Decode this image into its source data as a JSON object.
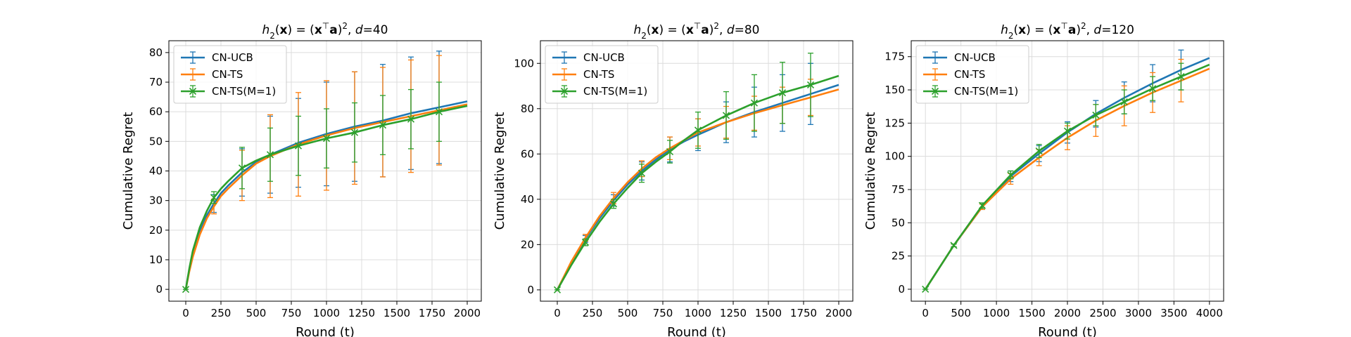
{
  "chart_data": [
    {
      "type": "line",
      "title": "h2(x) = (x⊤a)2, d=40",
      "title_parts": {
        "fn": "h",
        "sub": "2",
        "var": "x",
        "sup_t": "⊤",
        "vec": "a",
        "sq": "2",
        "dlabel": "d",
        "dvalue": "=40"
      },
      "xlabel_text": "Round (",
      "xlabel_var": "t",
      "xlabel_end": ")",
      "ylabel": "Cumulative Regret",
      "xlim": [
        -120,
        2100
      ],
      "ylim": [
        -4,
        84
      ],
      "xticks": [
        0,
        250,
        500,
        750,
        1000,
        1250,
        1500,
        1750,
        2000
      ],
      "yticks": [
        0,
        10,
        20,
        30,
        40,
        50,
        60,
        70,
        80
      ],
      "grid": true,
      "legend_loc": "upper-left",
      "series": [
        {
          "name": "CN-UCB",
          "color": "#1f77b4",
          "marker": "none",
          "x": [
            0,
            25,
            50,
            100,
            150,
            200,
            250,
            300,
            400,
            500,
            600,
            800,
            1000,
            1200,
            1400,
            1600,
            1800,
            2000
          ],
          "y": [
            0,
            6.5,
            12,
            19.5,
            25,
            29,
            32.5,
            35,
            39.5,
            43,
            45.5,
            49.5,
            52.5,
            55,
            57,
            59.5,
            61.5,
            63.5
          ],
          "err_x": [
            200,
            400,
            600,
            800,
            1000,
            1200,
            1400,
            1600,
            1800
          ],
          "err_y": [
            29,
            39.5,
            45.5,
            49.5,
            52.5,
            55,
            57,
            59.5,
            61.5
          ],
          "err_half": [
            3,
            8,
            13,
            15,
            17.5,
            18.5,
            19,
            19,
            19
          ]
        },
        {
          "name": "CN-TS",
          "color": "#ff7f0e",
          "marker": "none",
          "x": [
            0,
            25,
            50,
            100,
            150,
            200,
            250,
            300,
            400,
            500,
            600,
            800,
            1000,
            1200,
            1400,
            1600,
            1800,
            2000
          ],
          "y": [
            0,
            6,
            11,
            18.5,
            24,
            28,
            31.5,
            34,
            38.5,
            42.5,
            45,
            49,
            52,
            54.5,
            56.5,
            58.5,
            60.5,
            62.5
          ],
          "err_x": [
            200,
            400,
            600,
            800,
            1000,
            1200,
            1400,
            1600,
            1800
          ],
          "err_y": [
            28,
            38.5,
            45,
            49,
            52,
            54.5,
            56.5,
            58.5,
            60.5
          ],
          "err_half": [
            2.5,
            8.5,
            14,
            17.5,
            18.5,
            19,
            18.5,
            19,
            18.5
          ]
        },
        {
          "name": "CN-TS(M=1)",
          "color": "#2ca02c",
          "marker": "x",
          "x": [
            0,
            25,
            50,
            100,
            150,
            200,
            250,
            300,
            400,
            500,
            600,
            800,
            1000,
            1200,
            1400,
            1600,
            1800,
            2000
          ],
          "y": [
            0,
            7,
            13,
            21,
            26.5,
            31,
            34,
            36.5,
            41,
            43.5,
            45.5,
            48.5,
            51,
            53,
            55.5,
            57.5,
            60,
            62
          ],
          "err_x": [
            0,
            200,
            400,
            600,
            800,
            1000,
            1200,
            1400,
            1600,
            1800
          ],
          "err_y": [
            0,
            31,
            41,
            45.5,
            48.5,
            51,
            53,
            55.5,
            57.5,
            60
          ],
          "err_half": [
            0,
            2,
            7,
            9,
            10,
            10,
            10,
            10,
            10,
            10
          ]
        }
      ]
    },
    {
      "type": "line",
      "title": "h2(x) = (x⊤a)2, d=80",
      "title_parts": {
        "fn": "h",
        "sub": "2",
        "var": "x",
        "sup_t": "⊤",
        "vec": "a",
        "sq": "2",
        "dlabel": "d",
        "dvalue": "=80"
      },
      "xlabel_text": "Round (",
      "xlabel_var": "t",
      "xlabel_end": ")",
      "ylabel": "Cumulative Regret",
      "xlim": [
        -120,
        2100
      ],
      "ylim": [
        -5,
        110
      ],
      "xticks": [
        0,
        250,
        500,
        750,
        1000,
        1250,
        1500,
        1750,
        2000
      ],
      "yticks": [
        0,
        20,
        40,
        60,
        80,
        100
      ],
      "grid": true,
      "legend_loc": "upper-left",
      "series": [
        {
          "name": "CN-UCB",
          "color": "#1f77b4",
          "marker": "none",
          "x": [
            0,
            100,
            200,
            300,
            400,
            500,
            600,
            700,
            800,
            900,
            1000,
            1200,
            1400,
            1600,
            1800,
            2000
          ],
          "y": [
            0,
            12,
            22.5,
            31.5,
            39.5,
            46.5,
            52.5,
            57.5,
            62,
            65.5,
            68.5,
            74,
            78.5,
            82.5,
            86.5,
            90.5
          ],
          "err_x": [
            200,
            400,
            600,
            800,
            1000,
            1200,
            1400,
            1600,
            1800
          ],
          "err_y": [
            22.5,
            39.5,
            52.5,
            62,
            68.5,
            74,
            78.5,
            82.5,
            86.5
          ],
          "err_half": [
            1.5,
            2.5,
            4,
            5.5,
            7,
            9,
            11,
            12.5,
            13.5
          ]
        },
        {
          "name": "CN-TS",
          "color": "#ff7f0e",
          "marker": "none",
          "x": [
            0,
            100,
            200,
            300,
            400,
            500,
            600,
            700,
            800,
            900,
            1000,
            1200,
            1400,
            1600,
            1800,
            2000
          ],
          "y": [
            0,
            12.5,
            23,
            32.5,
            40.5,
            47.5,
            53.5,
            58.5,
            62.5,
            66,
            69.5,
            74,
            78,
            81.5,
            85,
            88.5
          ],
          "err_x": [
            200,
            400,
            600,
            800,
            1000,
            1200,
            1400,
            1600,
            1800
          ],
          "err_y": [
            23,
            40.5,
            53.5,
            62.5,
            69.5,
            74,
            78,
            81.5,
            85
          ],
          "err_half": [
            1.5,
            2.5,
            3.5,
            5,
            6,
            7,
            7.5,
            8,
            8
          ]
        },
        {
          "name": "CN-TS(M=1)",
          "color": "#2ca02c",
          "marker": "x",
          "x": [
            0,
            100,
            200,
            300,
            400,
            500,
            600,
            700,
            800,
            900,
            1000,
            1200,
            1400,
            1600,
            1800,
            2000
          ],
          "y": [
            0,
            11,
            21,
            30,
            38,
            45,
            51.5,
            56.5,
            61,
            66,
            70.5,
            77,
            82.5,
            87,
            90.5,
            94.5
          ],
          "err_x": [
            0,
            200,
            400,
            600,
            800,
            1000,
            1200,
            1400,
            1600,
            1800
          ],
          "err_y": [
            0,
            21,
            38,
            51.5,
            61,
            70.5,
            77,
            82.5,
            87,
            90.5
          ],
          "err_half": [
            0,
            1.5,
            2,
            4,
            5,
            8,
            10.5,
            12.5,
            13.5,
            14
          ]
        }
      ]
    },
    {
      "type": "line",
      "title": "h2(x) = (x⊤a)2, d=120",
      "title_parts": {
        "fn": "h",
        "sub": "2",
        "var": "x",
        "sup_t": "⊤",
        "vec": "a",
        "sq": "2",
        "dlabel": "d",
        "dvalue": "=120"
      },
      "xlabel_text": "Round (",
      "xlabel_var": "t",
      "xlabel_end": ")",
      "ylabel": "Cumulative Regret",
      "xlim": [
        -200,
        4200
      ],
      "ylim": [
        -9,
        187
      ],
      "xticks": [
        0,
        500,
        1000,
        1500,
        2000,
        2500,
        3000,
        3500,
        4000
      ],
      "yticks": [
        0,
        25,
        50,
        75,
        100,
        125,
        150,
        175
      ],
      "grid": true,
      "legend_loc": "upper-left",
      "series": [
        {
          "name": "CN-UCB",
          "color": "#1f77b4",
          "marker": "none",
          "x": [
            0,
            400,
            800,
            1200,
            1600,
            2000,
            2400,
            2800,
            3200,
            3600,
            4000
          ],
          "y": [
            0,
            33,
            62,
            85,
            102,
            118,
            132,
            144,
            155,
            165,
            174
          ],
          "err_x": [
            400,
            800,
            1200,
            1600,
            2000,
            2400,
            2800,
            3200,
            3600
          ],
          "err_y": [
            33,
            62,
            85,
            102,
            118,
            132,
            144,
            155,
            165
          ],
          "err_half": [
            1,
            2,
            4,
            6,
            8,
            10,
            12,
            14,
            15
          ]
        },
        {
          "name": "CN-TS",
          "color": "#ff7f0e",
          "marker": "none",
          "x": [
            0,
            400,
            800,
            1200,
            1600,
            2000,
            2400,
            2800,
            3200,
            3600,
            4000
          ],
          "y": [
            0,
            33,
            62,
            83,
            99,
            114,
            127,
            138,
            148,
            157,
            166
          ],
          "err_x": [
            400,
            800,
            1200,
            1600,
            2000,
            2400,
            2800,
            3200,
            3600
          ],
          "err_y": [
            33,
            62,
            83,
            99,
            114,
            127,
            138,
            148,
            157
          ],
          "err_half": [
            1,
            2,
            4,
            6,
            9,
            12,
            15,
            15,
            16
          ]
        },
        {
          "name": "CN-TS(M=1)",
          "color": "#2ca02c",
          "marker": "x",
          "x": [
            0,
            400,
            800,
            1200,
            1600,
            2000,
            2400,
            2800,
            3200,
            3600,
            4000
          ],
          "y": [
            0,
            33,
            63,
            86,
            104,
            119,
            131,
            141,
            151,
            160,
            169
          ],
          "err_x": [
            0,
            400,
            800,
            1200,
            1600,
            2000,
            2400,
            2800,
            3200,
            3600
          ],
          "err_y": [
            0,
            33,
            63,
            86,
            104,
            119,
            131,
            141,
            151,
            160
          ],
          "err_half": [
            0,
            1,
            2,
            3,
            5,
            6,
            8,
            9,
            9,
            10
          ]
        }
      ]
    }
  ]
}
